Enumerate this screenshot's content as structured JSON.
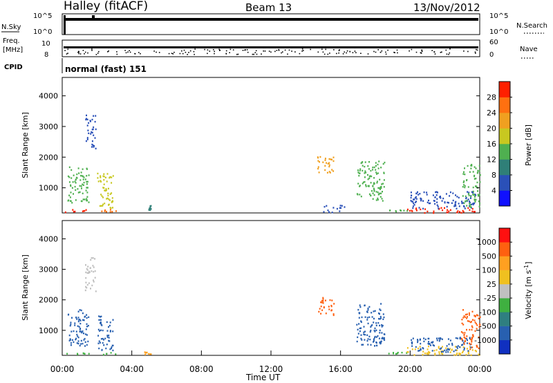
{
  "header": {
    "station": "Halley (fitACF)",
    "beam": "Beam 13",
    "date": "13/Nov/2012"
  },
  "top_panels": {
    "nsky_label": "N.Sky",
    "nsearch_label": "N.Search",
    "nsky_ticks": [
      "10^5",
      "10^0"
    ],
    "nsearch_ticks": [
      "10^5",
      "10^0"
    ],
    "freq_label_line1": "Freq.",
    "freq_label_line2": "[MHz]",
    "freq_ticks": [
      "10",
      "8"
    ],
    "nave_label": "Nave",
    "nave_ticks": [
      "60",
      "0"
    ],
    "cpid_label": "CPID",
    "cpid_text": "normal (fast) 151"
  },
  "chart_data": [
    {
      "type": "heatmap",
      "name": "power",
      "ylabel": "Slant Range [km]",
      "ylim": [
        180,
        4600
      ],
      "yticks": [
        1000,
        2000,
        3000,
        4000
      ],
      "xlim": [
        0,
        24
      ],
      "colorbar": {
        "label": "Power [dB]",
        "ticks": [
          "4",
          "8",
          "12",
          "16",
          "20",
          "24",
          "28"
        ],
        "colors": [
          "#1010ff",
          "#2a50b8",
          "#2f7f78",
          "#4fb050",
          "#c8c820",
          "#f0a020",
          "#ff7010",
          "#ff2000"
        ]
      },
      "patches": [
        {
          "t0": 0.15,
          "t1": 1.6,
          "r0": 220,
          "r1": 330,
          "level": 7
        },
        {
          "t0": 0.3,
          "t1": 1.5,
          "r0": 500,
          "r1": 1700,
          "level": 3
        },
        {
          "t0": 1.3,
          "t1": 1.9,
          "r0": 2300,
          "r1": 3400,
          "level": 1
        },
        {
          "t0": 2.0,
          "t1": 2.9,
          "r0": 350,
          "r1": 1500,
          "level": 4
        },
        {
          "t0": 2.2,
          "t1": 3.1,
          "r0": 220,
          "r1": 320,
          "level": 6
        },
        {
          "t0": 4.7,
          "t1": 5.1,
          "r0": 220,
          "r1": 450,
          "level": 2
        },
        {
          "t0": 14.6,
          "t1": 15.6,
          "r0": 1500,
          "r1": 2050,
          "level": 5
        },
        {
          "t0": 15.0,
          "t1": 16.2,
          "r0": 200,
          "r1": 450,
          "level": 1
        },
        {
          "t0": 16.9,
          "t1": 18.5,
          "r0": 600,
          "r1": 1900,
          "level": 3
        },
        {
          "t0": 18.6,
          "t1": 19.8,
          "r0": 250,
          "r1": 300,
          "level": 3
        },
        {
          "t0": 19.8,
          "t1": 24.0,
          "r0": 200,
          "r1": 370,
          "level": 7
        },
        {
          "t0": 20.0,
          "t1": 23.8,
          "r0": 330,
          "r1": 900,
          "level": 1
        },
        {
          "t0": 23.0,
          "t1": 24.0,
          "r0": 380,
          "r1": 1800,
          "level": 3
        }
      ]
    },
    {
      "type": "heatmap",
      "name": "velocity",
      "ylabel": "Slant Range [km]",
      "xlabel": "Time UT",
      "ylim": [
        180,
        4600
      ],
      "yticks": [
        1000,
        2000,
        3000,
        4000
      ],
      "xlim": [
        0,
        24
      ],
      "xticks": [
        "00:00",
        "04:00",
        "08:00",
        "12:00",
        "16:00",
        "20:00",
        "00:00"
      ],
      "colorbar": {
        "label": "Velocity [m s^-1]",
        "ticks": [
          "1000",
          "500",
          "100",
          "25",
          "-25",
          "-100",
          "-500",
          "-1000"
        ],
        "colors": [
          "#1030c0",
          "#2860b0",
          "#2f7f80",
          "#3fb040",
          "#c0c0c0",
          "#f0c020",
          "#ffa020",
          "#ff6010",
          "#ff1010"
        ]
      },
      "patches": [
        {
          "t0": 0.15,
          "t1": 3.1,
          "r0": 220,
          "r1": 300,
          "level": 3
        },
        {
          "t0": 0.3,
          "t1": 1.5,
          "r0": 500,
          "r1": 1700,
          "level": 1
        },
        {
          "t0": 1.3,
          "t1": 1.9,
          "r0": 2300,
          "r1": 3400,
          "level": 4
        },
        {
          "t0": 2.0,
          "t1": 2.9,
          "r0": 350,
          "r1": 1500,
          "level": 1
        },
        {
          "t0": 4.7,
          "t1": 5.1,
          "r0": 220,
          "r1": 320,
          "level": 6
        },
        {
          "t0": 14.7,
          "t1": 15.6,
          "r0": 1500,
          "r1": 2100,
          "level": 7
        },
        {
          "t0": 16.9,
          "t1": 18.5,
          "r0": 500,
          "r1": 1900,
          "level": 1
        },
        {
          "t0": 18.6,
          "t1": 19.8,
          "r0": 250,
          "r1": 300,
          "level": 3
        },
        {
          "t0": 19.8,
          "t1": 24.0,
          "r0": 200,
          "r1": 500,
          "level": 5
        },
        {
          "t0": 20.0,
          "t1": 23.5,
          "r0": 300,
          "r1": 800,
          "level": 1
        },
        {
          "t0": 22.9,
          "t1": 24.0,
          "r0": 400,
          "r1": 1700,
          "level": 7
        }
      ]
    }
  ]
}
